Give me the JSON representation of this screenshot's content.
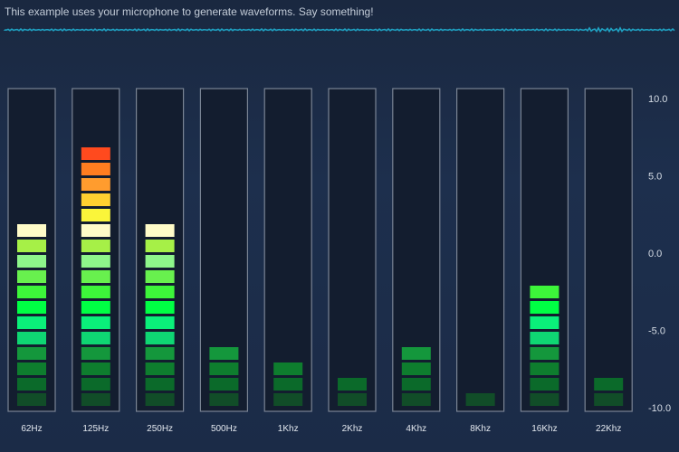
{
  "header": {
    "instruction": "This example uses your microphone to generate waveforms. Say something!"
  },
  "colors": {
    "background": "#1c2c49",
    "frame_stroke": "#7a8494",
    "waveform": "#1fa3c4"
  },
  "chart_data": {
    "type": "bar",
    "style": "segmented-led-spectrum",
    "categories": [
      "62Hz",
      "125Hz",
      "250Hz",
      "500Hz",
      "1Khz",
      "2Khz",
      "4Khz",
      "8Khz",
      "16Khz",
      "22Khz"
    ],
    "values": [
      1.5,
      6.5,
      1.5,
      -6.5,
      -7.5,
      -8.5,
      -6.5,
      -9.5,
      -2.5,
      -8.5
    ],
    "ylim": [
      -10,
      10
    ],
    "yticks": [
      "10.0",
      "5.0",
      "0.0",
      "-5.0",
      "-10.0"
    ],
    "ytick_values": [
      10,
      5,
      0,
      -5,
      -10
    ],
    "y_axis_position": "right",
    "grid": false,
    "segment_count": 18,
    "segment_colors": [
      "#114d28",
      "#0b6a2a",
      "#0e7d2e",
      "#14973c",
      "#0fd673",
      "#0af07a",
      "#00ff44",
      "#3df53a",
      "#68f04e",
      "#8ef58a",
      "#a6f047",
      "#fffbc8",
      "#faf53a",
      "#ffd030",
      "#ff9c2e",
      "#ff7d20",
      "#ff4a1e",
      "#ff1e1e"
    ]
  }
}
